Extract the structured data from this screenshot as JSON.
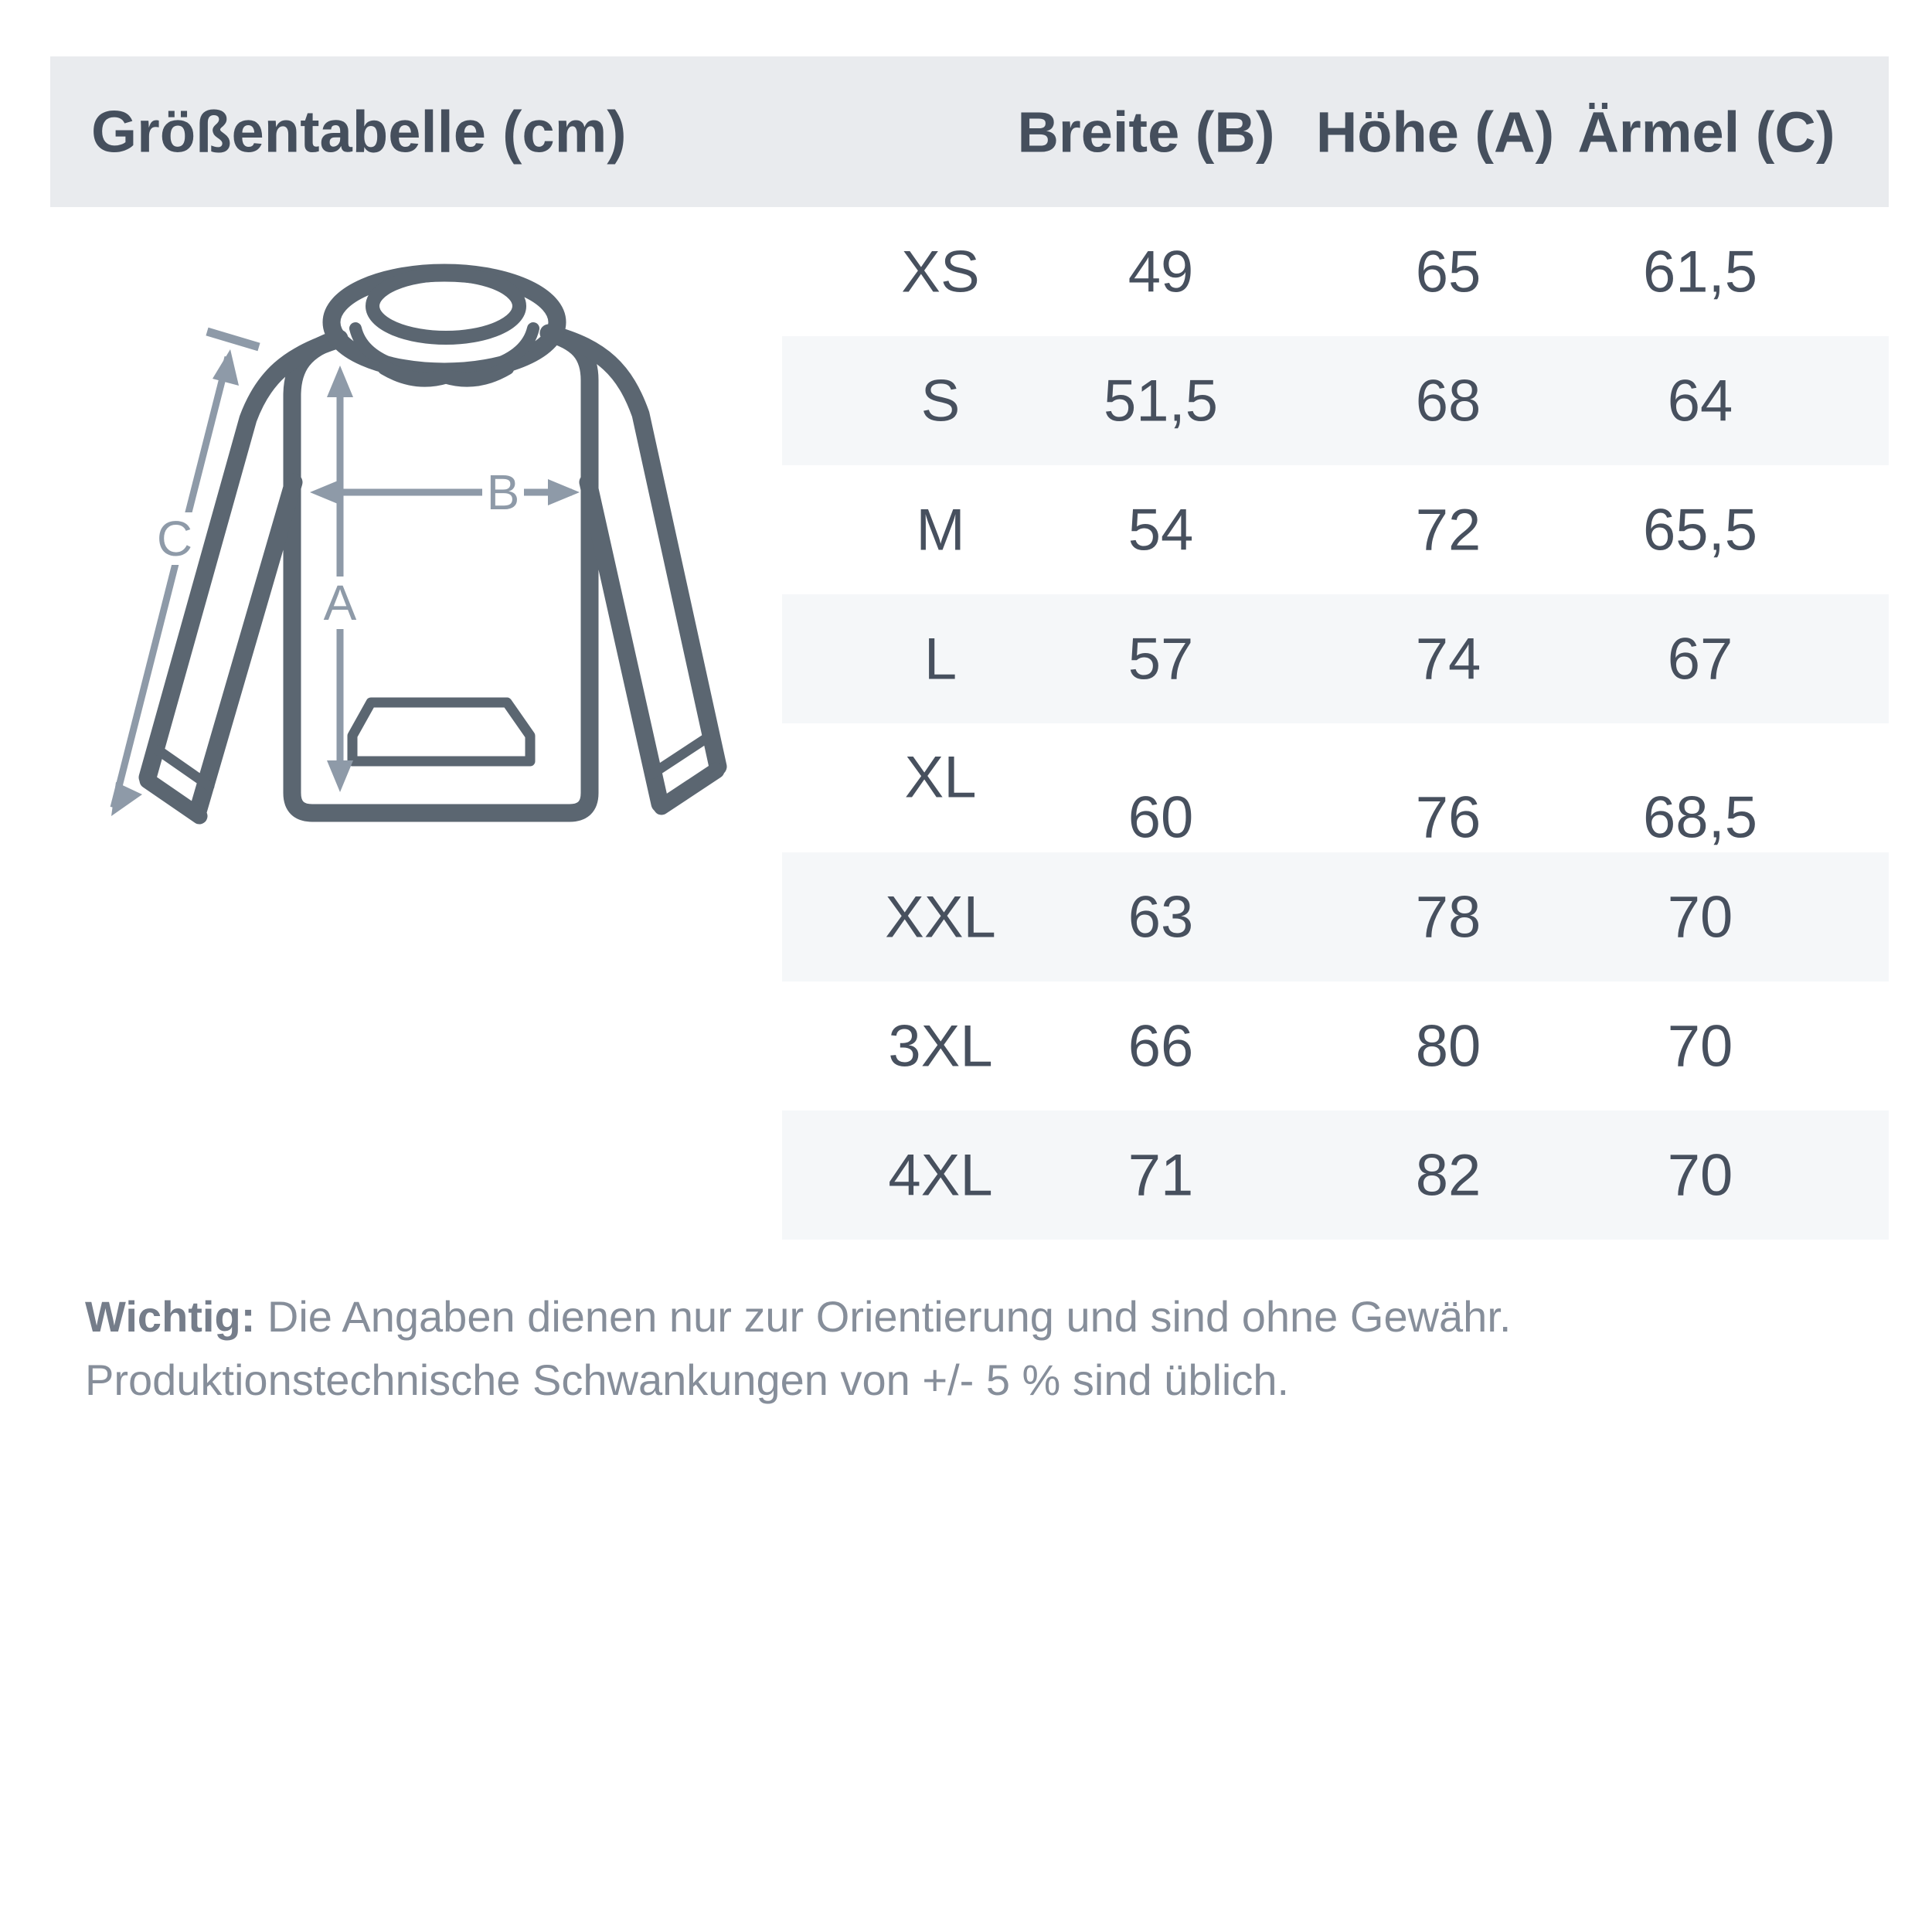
{
  "size_chart": {
    "title": "Größentabelle (cm)",
    "columns": {
      "breite": "Breite (B)",
      "hoehe": "Höhe (A)",
      "aermel": "Ärmel (C)"
    },
    "rows": [
      {
        "size": "XS",
        "breite": "49",
        "hoehe": "65",
        "aermel": "61,5"
      },
      {
        "size": "S",
        "breite": "51,5",
        "hoehe": "68",
        "aermel": "64"
      },
      {
        "size": "M",
        "breite": "54",
        "hoehe": "72",
        "aermel": "65,5"
      },
      {
        "size": "L",
        "breite": "57",
        "hoehe": "74",
        "aermel": "67"
      },
      {
        "size": "XL",
        "breite": "60",
        "hoehe": "76",
        "aermel": "68,5"
      },
      {
        "size": "XXL",
        "breite": "63",
        "hoehe": "78",
        "aermel": "70"
      },
      {
        "size": "3XL",
        "breite": "66",
        "hoehe": "80",
        "aermel": "70"
      },
      {
        "size": "4XL",
        "breite": "71",
        "hoehe": "82",
        "aermel": "70"
      }
    ]
  },
  "diagram": {
    "measure_labels": {
      "a": "A",
      "b": "B",
      "c": "C"
    }
  },
  "footer": {
    "bold_prefix": "Wichtig:",
    "line1_rest": " Die Angaben dienen nur zur Orientierung und sind ohne Gewähr.",
    "line2": "Produktionstechnische Schwankungen von +/- 5 % sind üblich."
  },
  "colors": {
    "header_band": "#e9ebee",
    "row_stripe": "#f5f7f9",
    "heading_text": "#454f5d",
    "cell_text": "#47505e",
    "outline": "#5b6671",
    "arrow": "#8e9aa8",
    "footer_text": "#868e9a",
    "footer_bold": "#757d8a"
  }
}
